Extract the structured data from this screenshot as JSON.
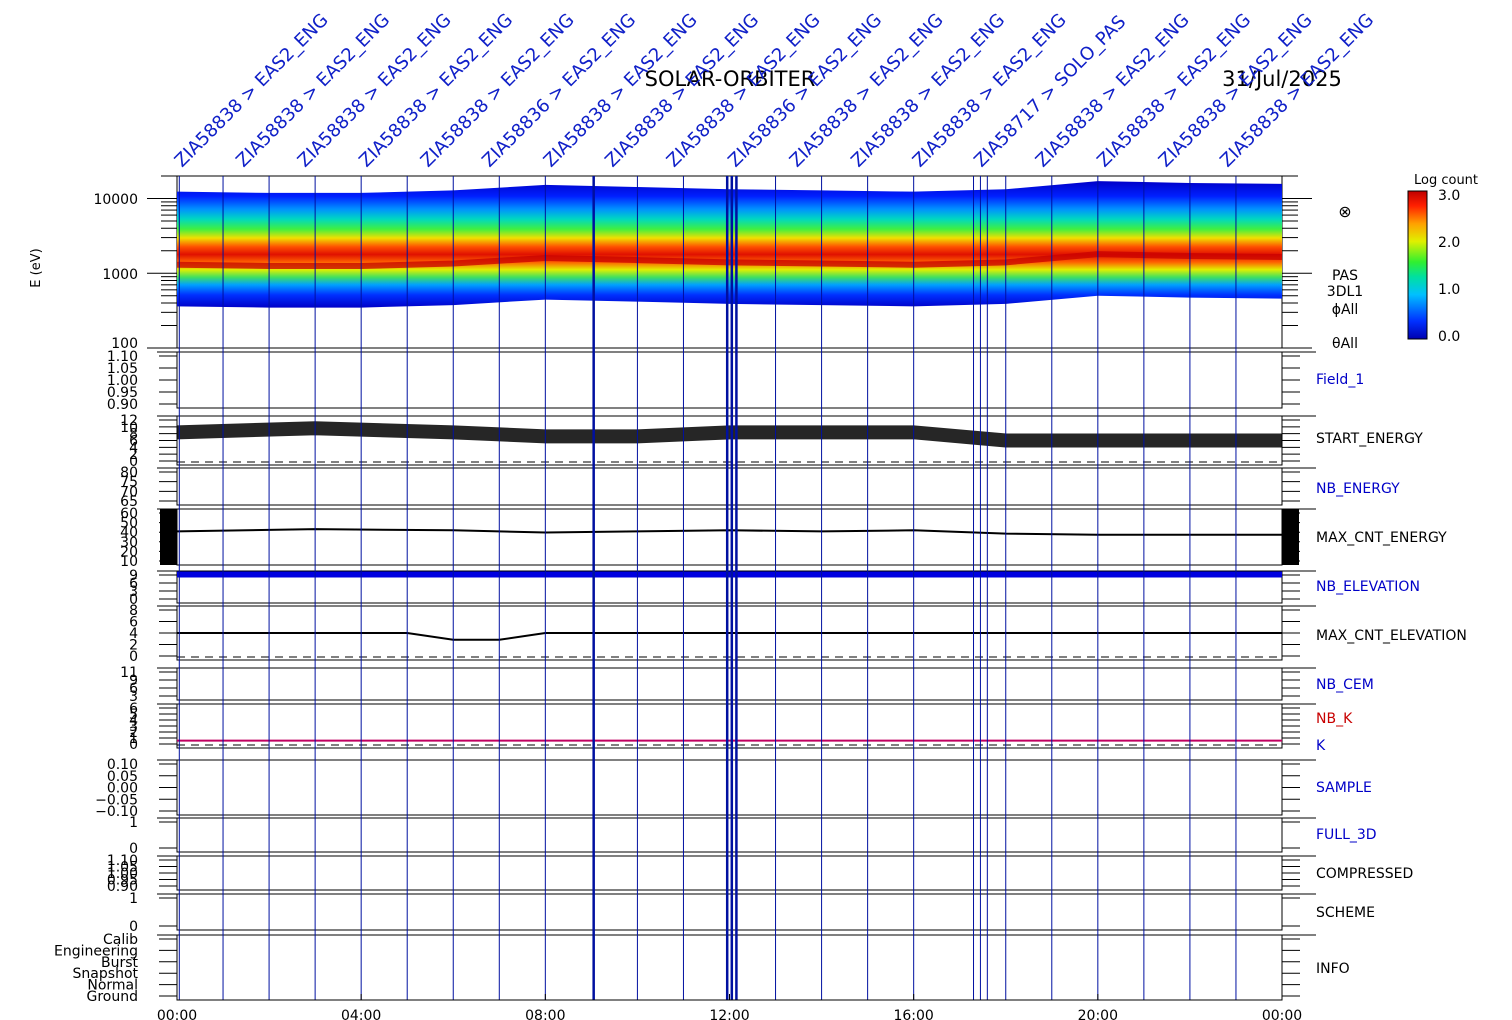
{
  "header": {
    "mission": "SOLAR-ORBITER",
    "date": "31/Jul/2025"
  },
  "spectrogram": {
    "ylabel": "E (eV)",
    "yticks": [
      "10000",
      "1000",
      "100"
    ],
    "side_labels": [
      "PAS",
      "3DL1",
      "ϕAll",
      "θAll"
    ],
    "colorbar_title": "Log count",
    "colorbar_ticks": [
      "3.0",
      "2.0",
      "1.0",
      "0.0"
    ]
  },
  "command_labels": [
    "ZIA58838 > EAS2_ENG",
    "ZIA58838 > EAS2_ENG",
    "ZIA58838 > EAS2_ENG",
    "ZIA58838 > EAS2_ENG",
    "ZIA58838 > EAS2_ENG",
    "ZIA58836 > EAS2_ENG",
    "ZIA58838 > EAS2_ENG",
    "ZIA58838 > EAS2_ENG",
    "ZIA58838 > EAS2_ENG",
    "ZIA58836 > EAS2_ENG",
    "ZIA58838 > EAS2_ENG",
    "ZIA58838 > EAS2_ENG",
    "ZIA58838 > EAS2_ENG",
    "ZIA58717 > SOLO_PAS",
    "ZIA58838 > EAS2_ENG",
    "ZIA58838 > EAS2_ENG",
    "ZIA58838 > EAS2_ENG",
    "ZIA58838 > EAS2_ENG"
  ],
  "panels": [
    {
      "name": "Field_1",
      "color": "#0000c8",
      "ticks": [
        "1.10",
        "1.05",
        "1.00",
        "0.95",
        "0.90"
      ]
    },
    {
      "name": "START_ENERGY",
      "color": "#000000",
      "ticks": [
        "12",
        "10",
        "8",
        "6",
        "4",
        "2",
        "0"
      ]
    },
    {
      "name": "NB_ENERGY",
      "color": "#0000c8",
      "ticks": [
        "80",
        "75",
        "70",
        "65"
      ]
    },
    {
      "name": "MAX_CNT_ENERGY",
      "color": "#000000",
      "ticks": [
        "60",
        "50",
        "40",
        "30",
        "20",
        "10"
      ]
    },
    {
      "name": "NB_ELEVATION",
      "color": "#0000c8",
      "ticks": [
        "9",
        "6",
        "3",
        "0"
      ]
    },
    {
      "name": "MAX_CNT_ELEVATION",
      "color": "#000000",
      "ticks": [
        "8",
        "6",
        "4",
        "2",
        "0"
      ]
    },
    {
      "name": "NB_CEM",
      "color": "#0000c8",
      "ticks": [
        "11",
        "9",
        "6",
        "3"
      ]
    },
    {
      "name": "NB_K",
      "color": "#c80000",
      "ticks": [
        "6",
        "5",
        "4",
        "3",
        "2",
        "1",
        "0"
      ]
    },
    {
      "name": "K",
      "color": "#0000c8",
      "ticks": []
    },
    {
      "name": "SAMPLE",
      "color": "#0000c8",
      "ticks": [
        "0.10",
        "0.05",
        "0.00",
        "−0.05",
        "−0.10"
      ]
    },
    {
      "name": "FULL_3D",
      "color": "#0000c8",
      "ticks": [
        "1",
        "0"
      ]
    },
    {
      "name": "COMPRESSED",
      "color": "#000000",
      "ticks": [
        "1.10",
        "1.05",
        "1.00",
        "0.95",
        "0.90"
      ]
    },
    {
      "name": "SCHEME",
      "color": "#000000",
      "ticks": [
        "1",
        "0"
      ]
    },
    {
      "name": "INFO",
      "color": "#000000",
      "ticks": [
        "Calib",
        "Engineering",
        "Burst",
        "Snapshot",
        "Normal",
        "Ground"
      ]
    }
  ],
  "time_axis": {
    "ticks": [
      "00:00",
      "04:00",
      "08:00",
      "12:00",
      "16:00",
      "20:00",
      "00:00"
    ]
  },
  "chart_data": {
    "type": "heatmap",
    "title": "SOLAR-ORBITER",
    "date": "31/Jul/2025",
    "instrument": [
      "PAS",
      "3DL1"
    ],
    "x_unit": "hours UT",
    "xlim": [
      0,
      24
    ],
    "y_scale": "log",
    "ylim": [
      100,
      20000
    ],
    "ylabel": "E (eV)",
    "colorbar": {
      "label": "Log count",
      "range": [
        0.0,
        3.0
      ]
    },
    "peak_energy_ev": {
      "x": [
        0,
        2,
        4,
        6,
        8,
        10,
        12,
        14,
        16,
        18,
        20,
        22,
        24
      ],
      "y": [
        1300,
        1250,
        1250,
        1350,
        1600,
        1500,
        1400,
        1350,
        1300,
        1400,
        1800,
        1700,
        1650
      ]
    },
    "marker_times_h": [
      0.05,
      1.0,
      2.0,
      3.0,
      4.0,
      5.0,
      6.0,
      7.0,
      8.0,
      9.05,
      10.0,
      11.0,
      11.95,
      12.05,
      12.15,
      13.0,
      14.0,
      15.0,
      16.0,
      17.3,
      17.45,
      17.6,
      18.0,
      19.0,
      20.0,
      21.0,
      22.0,
      23.0
    ],
    "series": [
      {
        "name": "START_ENERGY",
        "ylim": [
          0,
          12
        ],
        "x": [
          0,
          3,
          6,
          8,
          10,
          12,
          14,
          16,
          18,
          20,
          22,
          24
        ],
        "values": [
          8,
          9,
          8,
          7,
          7,
          8,
          8,
          8,
          6,
          6,
          6,
          6
        ]
      },
      {
        "name": "MAX_CNT_ENERGY",
        "ylim": [
          10,
          60
        ],
        "x": [
          0,
          3,
          6,
          8,
          10,
          12,
          14,
          16,
          18,
          20,
          22,
          24
        ],
        "values": [
          40,
          42,
          41,
          39,
          40,
          41,
          40,
          41,
          38,
          37,
          37,
          37
        ]
      },
      {
        "name": "NB_ELEVATION",
        "ylim": [
          0,
          9
        ],
        "x": [
          0,
          13,
          13.6,
          24
        ],
        "values": [
          8,
          8,
          8,
          8
        ]
      },
      {
        "name": "MAX_CNT_ELEVATION",
        "ylim": [
          0,
          8
        ],
        "x": [
          0,
          1,
          3,
          5,
          6,
          7,
          8,
          10,
          12,
          14,
          16,
          18,
          20,
          22,
          24
        ],
        "values": [
          4,
          4,
          4,
          4,
          3,
          3,
          4,
          4,
          4,
          4,
          4,
          4,
          4,
          4,
          4
        ]
      },
      {
        "name": "NB_K",
        "ylim": [
          0,
          6
        ],
        "x": [
          0,
          24
        ],
        "values": [
          1,
          1
        ]
      }
    ]
  }
}
